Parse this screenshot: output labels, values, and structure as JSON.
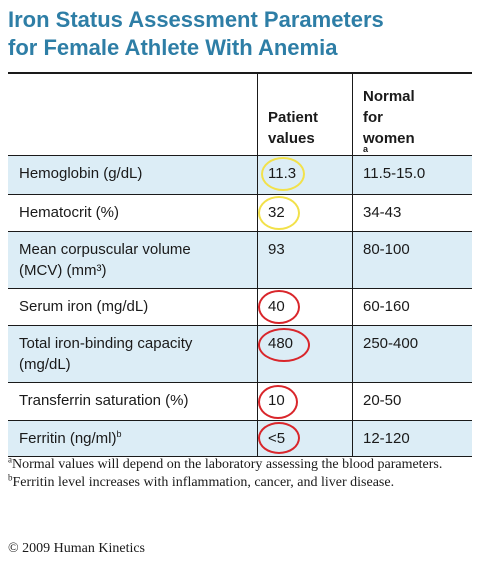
{
  "title": {
    "line1": "Iron Status Assessment Parameters",
    "line2": "for Female Athlete With Anemia"
  },
  "colors": {
    "title": "#2e7ea6",
    "row_shade": "#dcedf6",
    "circle_yellow": "#f2e14a",
    "circle_red": "#d9262b"
  },
  "table": {
    "headers": {
      "parameter": "",
      "patient": [
        "Patient",
        "values"
      ],
      "normal": [
        "Normal",
        "for",
        "women"
      ],
      "normal_sup": "a"
    },
    "rows": [
      {
        "parameter": [
          "Hemoglobin (g/dL)"
        ],
        "patient": "11.3",
        "normal": "11.5-15.0",
        "circle": "yellow"
      },
      {
        "parameter": [
          "Hematocrit (%)"
        ],
        "patient": "32",
        "normal": "34-43",
        "circle": "yellow"
      },
      {
        "parameter": [
          "Mean corpuscular volume",
          "(MCV) (mm³)"
        ],
        "patient": "93",
        "normal": "80-100",
        "circle": "none"
      },
      {
        "parameter": [
          "Serum iron (mg/dL)"
        ],
        "patient": "40",
        "normal": "60-160",
        "circle": "red"
      },
      {
        "parameter": [
          "Total iron-binding capacity",
          "(mg/dL)"
        ],
        "patient": "480",
        "normal": "250-400",
        "circle": "red"
      },
      {
        "parameter": [
          "Transferrin saturation (%)"
        ],
        "patient": "10",
        "normal": "20-50",
        "circle": "red"
      },
      {
        "parameter": [
          "Ferritin (ng/ml)"
        ],
        "parameter_sup": "b",
        "patient": "<5",
        "normal": "12-120",
        "circle": "red"
      }
    ]
  },
  "notes": [
    {
      "marker": "a",
      "text": "Normal values will depend on the laboratory assessing the blood parameters."
    },
    {
      "marker": "b",
      "text": "Ferritin level increases with inflammation, cancer, and liver disease."
    }
  ],
  "copyright": "© 2009 Human Kinetics"
}
